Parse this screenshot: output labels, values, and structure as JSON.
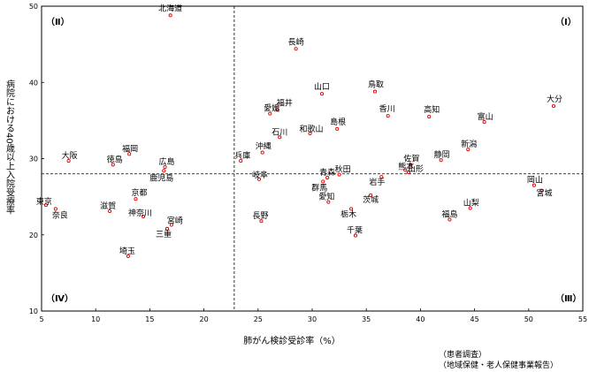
{
  "chart_data": {
    "type": "scatter",
    "xlabel": "肺がん検診受診率（%）",
    "ylabel": "病院における40歳以上入院受療率",
    "xlim": [
      5,
      55
    ],
    "ylim": [
      10,
      50
    ],
    "xticks": [
      5,
      10,
      15,
      20,
      25,
      30,
      35,
      40,
      45,
      50,
      55
    ],
    "yticks": [
      10,
      20,
      30,
      40,
      50
    ],
    "mean_x": 22.8,
    "mean_y": 28.0,
    "quadrants": [
      "（Ⅰ）",
      "（Ⅱ）",
      "（Ⅲ）",
      "（Ⅳ）"
    ],
    "source": [
      "（患者調査）",
      "（地域保健・老人保健事業報告）"
    ],
    "points": [
      {
        "name": "北海道",
        "x": 16.9,
        "y": 48.8
      },
      {
        "name": "長崎",
        "x": 28.5,
        "y": 44.4
      },
      {
        "name": "山口",
        "x": 30.9,
        "y": 38.5
      },
      {
        "name": "鳥取",
        "x": 35.8,
        "y": 38.8
      },
      {
        "name": "福井",
        "x": 26.8,
        "y": 36.4
      },
      {
        "name": "愛媛",
        "x": 26.1,
        "y": 35.9
      },
      {
        "name": "香川",
        "x": 37.0,
        "y": 35.6
      },
      {
        "name": "高知",
        "x": 40.8,
        "y": 35.5
      },
      {
        "name": "大分",
        "x": 52.3,
        "y": 36.9
      },
      {
        "name": "富山",
        "x": 45.9,
        "y": 34.8
      },
      {
        "name": "島根",
        "x": 32.3,
        "y": 33.9
      },
      {
        "name": "和歌山",
        "x": 29.8,
        "y": 33.3
      },
      {
        "name": "石川",
        "x": 27.0,
        "y": 32.8
      },
      {
        "name": "新潟",
        "x": 44.4,
        "y": 31.2
      },
      {
        "name": "沖縄",
        "x": 25.4,
        "y": 30.8
      },
      {
        "name": "大阪",
        "x": 7.5,
        "y": 29.7
      },
      {
        "name": "福岡",
        "x": 13.1,
        "y": 30.6
      },
      {
        "name": "徳島",
        "x": 11.6,
        "y": 29.2
      },
      {
        "name": "広島",
        "x": 16.4,
        "y": 28.9
      },
      {
        "name": "兵庫",
        "x": 23.4,
        "y": 29.7
      },
      {
        "name": "静岡",
        "x": 41.9,
        "y": 29.8
      },
      {
        "name": "佐賀",
        "x": 39.1,
        "y": 29.2
      },
      {
        "name": "熊本",
        "x": 38.6,
        "y": 28.5
      },
      {
        "name": "山形",
        "x": 38.9,
        "y": 28.2
      },
      {
        "name": "鹿児島",
        "x": 16.3,
        "y": 28.4
      },
      {
        "name": "岐阜",
        "x": 25.1,
        "y": 27.3
      },
      {
        "name": "秋田",
        "x": 32.5,
        "y": 27.9
      },
      {
        "name": "青森",
        "x": 31.4,
        "y": 27.5
      },
      {
        "name": "群馬",
        "x": 31.0,
        "y": 27.0
      },
      {
        "name": "岩手",
        "x": 36.4,
        "y": 27.6
      },
      {
        "name": "岡山",
        "x": 50.5,
        "y": 26.5
      },
      {
        "name": "宮城",
        "x": 51.2,
        "y": 25.8
      },
      {
        "name": "京都",
        "x": 13.7,
        "y": 24.7
      },
      {
        "name": "茨城",
        "x": 35.4,
        "y": 25.2
      },
      {
        "name": "愛知",
        "x": 31.5,
        "y": 24.3
      },
      {
        "name": "東京",
        "x": 5.4,
        "y": 23.9
      },
      {
        "name": "奈良",
        "x": 6.3,
        "y": 23.4
      },
      {
        "name": "滋賀",
        "x": 11.3,
        "y": 23.1
      },
      {
        "name": "神奈川",
        "x": 14.4,
        "y": 22.4
      },
      {
        "name": "栃木",
        "x": 33.6,
        "y": 23.4
      },
      {
        "name": "山梨",
        "x": 44.6,
        "y": 23.5
      },
      {
        "name": "福島",
        "x": 42.7,
        "y": 22.0
      },
      {
        "name": "長野",
        "x": 25.3,
        "y": 21.8
      },
      {
        "name": "宮崎",
        "x": 17.0,
        "y": 21.3
      },
      {
        "name": "三重",
        "x": 16.6,
        "y": 20.8
      },
      {
        "name": "千葉",
        "x": 34.0,
        "y": 19.9
      },
      {
        "name": "埼玉",
        "x": 13.0,
        "y": 17.2
      }
    ]
  }
}
